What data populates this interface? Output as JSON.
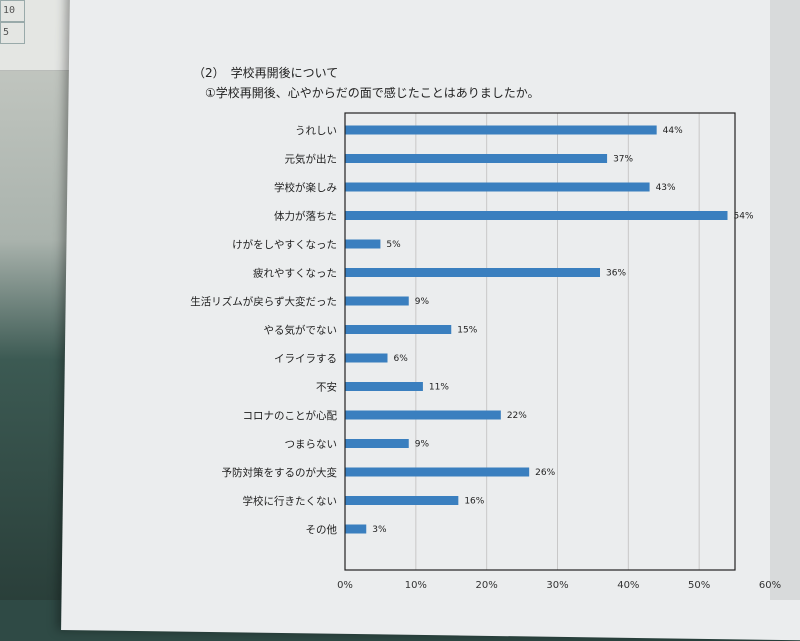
{
  "section_heading": "（2）　学校再開後について",
  "question_text": "①学校再開後、心やからだの面で感じたことはありましたか。",
  "corner_card": {
    "cell1": "10",
    "cell2": "5"
  },
  "colors": {
    "bar": "#3a7fbf",
    "frame": "#222222",
    "grid": "#c8c8c8"
  },
  "chart_data": {
    "type": "bar",
    "orientation": "horizontal",
    "title": "",
    "xlabel": "",
    "ylabel": "",
    "xlim": [
      0,
      60
    ],
    "unit": "%",
    "grid": true,
    "ticks": [
      "0%",
      "10%",
      "20%",
      "30%",
      "40%",
      "50%",
      "60%"
    ],
    "categories": [
      "うれしい",
      "元気が出た",
      "学校が楽しみ",
      "体力が落ちた",
      "けがをしやすくなった",
      "疲れやすくなった",
      "生活リズムが戻らず大変だった",
      "やる気がでない",
      "イライラする",
      "不安",
      "コロナのことが心配",
      "つまらない",
      "予防対策をするのが大変",
      "学校に行きたくない",
      "その他"
    ],
    "values": [
      44,
      37,
      43,
      54,
      5,
      36,
      9,
      15,
      6,
      11,
      22,
      9,
      26,
      16,
      3
    ],
    "value_labels": [
      "44%",
      "37%",
      "43%",
      "54%",
      "5%",
      "36%",
      "9%",
      "15%",
      "6%",
      "11%",
      "22%",
      "9%",
      "26%",
      "16%",
      "3%"
    ]
  }
}
